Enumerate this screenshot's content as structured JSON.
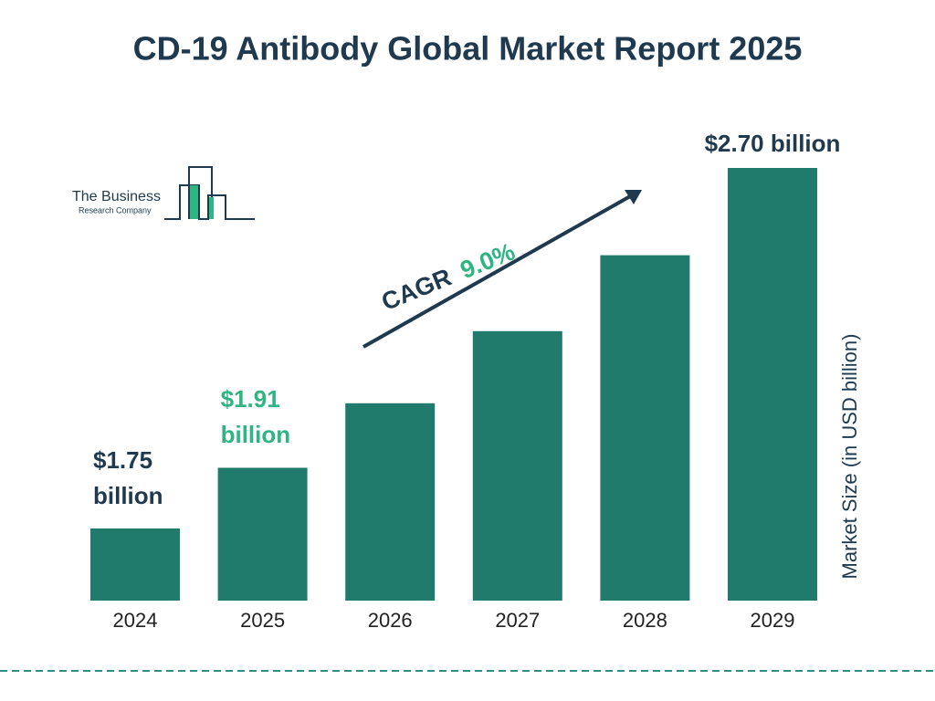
{
  "chart_data": {
    "type": "bar",
    "title": "CD-19 Antibody Global Market Report 2025",
    "categories": [
      "2024",
      "2025",
      "2026",
      "2027",
      "2028",
      "2029"
    ],
    "values": [
      1.75,
      1.91,
      2.08,
      2.27,
      2.47,
      2.7
    ],
    "value_labels": [
      "$1.75 billion",
      "$1.91 billion",
      null,
      null,
      null,
      "$2.70 billion"
    ],
    "color": "#217b6c",
    "ylim": [
      1.56,
      2.7
    ],
    "y_axis_label": "Market Size (in USD billion)",
    "annotations": {
      "cagr_label": "CAGR",
      "cagr_value": "9.0%"
    },
    "logo": {
      "line1": "The Business",
      "line2": "Research Company"
    }
  }
}
